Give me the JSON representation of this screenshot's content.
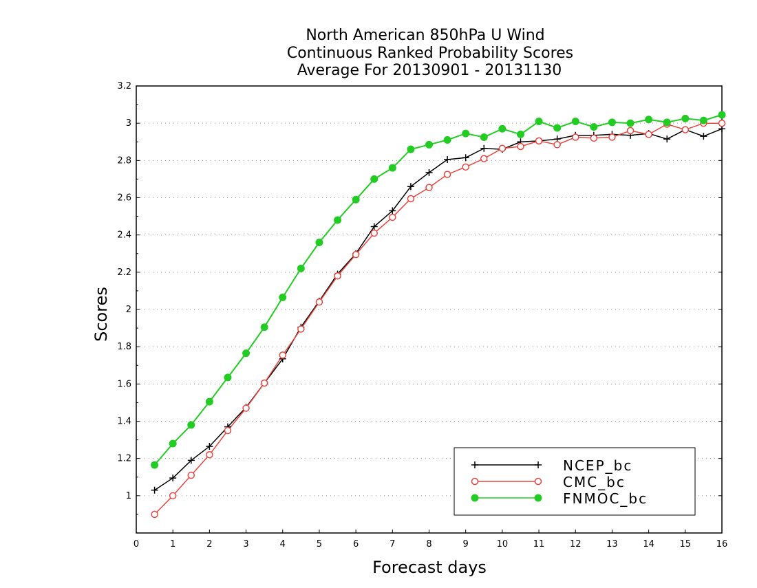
{
  "chart_data": {
    "type": "line",
    "title": [
      "North American 850hPa U Wind",
      "Continuous Ranked Probability Scores",
      "Average For 20130901 - 20131130"
    ],
    "xlabel": "Forecast days",
    "ylabel": "Scores",
    "xlim": [
      0,
      16
    ],
    "ylim": [
      0.8,
      3.2
    ],
    "xticks": [
      0,
      1,
      2,
      3,
      4,
      5,
      6,
      7,
      8,
      9,
      10,
      11,
      12,
      13,
      14,
      15,
      16
    ],
    "yticks": [
      1,
      1.2,
      1.4,
      1.6,
      1.8,
      2,
      2.2,
      2.4,
      2.6,
      2.8,
      3,
      3.2
    ],
    "ytick_labels": [
      "1",
      "1.2",
      "1.4",
      "1.6",
      "1.8",
      "2",
      "2.2",
      "2.4",
      "2.6",
      "2.8",
      "3",
      "3.2"
    ],
    "grid": "horizontal dotted",
    "legend_position": "bottom-right",
    "x": [
      0.5,
      1,
      1.5,
      2,
      2.5,
      3,
      3.5,
      4,
      4.5,
      5,
      5.5,
      6,
      6.5,
      7,
      7.5,
      8,
      8.5,
      9,
      9.5,
      10,
      10.5,
      11,
      11.5,
      12,
      12.5,
      13,
      13.5,
      14,
      14.5,
      15,
      15.5,
      16
    ],
    "series": [
      {
        "name": "NCEP_bc",
        "color": "#000000",
        "marker": "plus",
        "values": [
          1.03,
          1.095,
          1.19,
          1.265,
          1.37,
          1.475,
          1.605,
          1.735,
          1.905,
          2.045,
          2.19,
          2.3,
          2.445,
          2.53,
          2.66,
          2.735,
          2.805,
          2.815,
          2.865,
          2.86,
          2.9,
          2.905,
          2.915,
          2.935,
          2.935,
          2.94,
          2.935,
          2.945,
          2.915,
          2.965,
          2.93,
          2.97
        ]
      },
      {
        "name": "CMC_bc",
        "color": "#e8443e",
        "marker": "open-circle",
        "values": [
          0.9,
          1.0,
          1.11,
          1.22,
          1.35,
          1.47,
          1.605,
          1.755,
          1.895,
          2.04,
          2.18,
          2.295,
          2.41,
          2.495,
          2.595,
          2.655,
          2.725,
          2.765,
          2.81,
          2.865,
          2.875,
          2.905,
          2.885,
          2.925,
          2.92,
          2.925,
          2.96,
          2.94,
          2.995,
          2.965,
          3.0,
          3.0
        ]
      },
      {
        "name": "FNMOC_bc",
        "color": "#22cc22",
        "marker": "filled-circle",
        "values": [
          1.165,
          1.28,
          1.38,
          1.505,
          1.635,
          1.765,
          1.905,
          2.065,
          2.22,
          2.36,
          2.48,
          2.59,
          2.7,
          2.76,
          2.86,
          2.885,
          2.91,
          2.945,
          2.925,
          2.97,
          2.94,
          3.01,
          2.975,
          3.01,
          2.98,
          3.005,
          3.0,
          3.02,
          3.005,
          3.025,
          3.015,
          3.045
        ]
      }
    ]
  }
}
